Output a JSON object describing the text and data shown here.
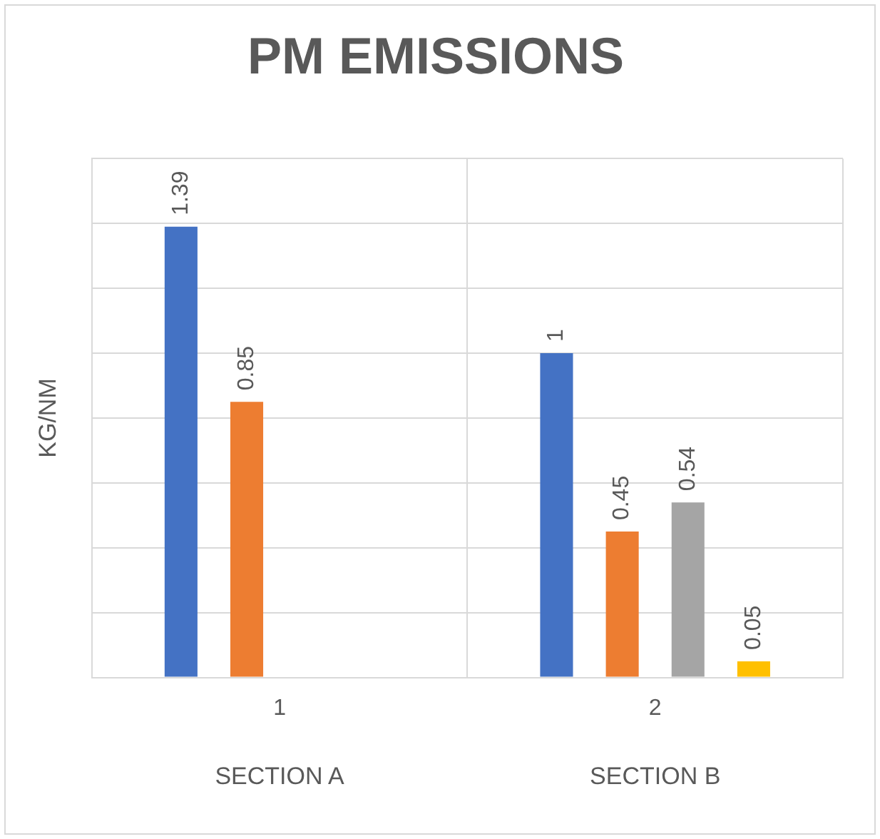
{
  "chart_data": {
    "type": "bar",
    "title": "PM EMISSIONS",
    "ylabel": "KG/NM",
    "categories": [
      "1",
      "2"
    ],
    "series": [
      {
        "color": "#4472c4",
        "values": [
          1.39,
          1
        ]
      },
      {
        "color": "#ed7d31",
        "values": [
          0.85,
          0.45
        ]
      },
      {
        "color": "#a5a5a5",
        "values": [
          null,
          0.54
        ]
      },
      {
        "color": "#ffc000",
        "values": [
          null,
          0.05
        ]
      }
    ],
    "ylim": [
      0,
      1.6
    ],
    "yticks": [
      0,
      0.2,
      0.4,
      0.6,
      0.8,
      1,
      1.2,
      1.4,
      1.6
    ],
    "grid": true,
    "tick_labels": "x",
    "data_labels": true,
    "annotations": [
      "SECTION A",
      "SECTION B"
    ]
  }
}
